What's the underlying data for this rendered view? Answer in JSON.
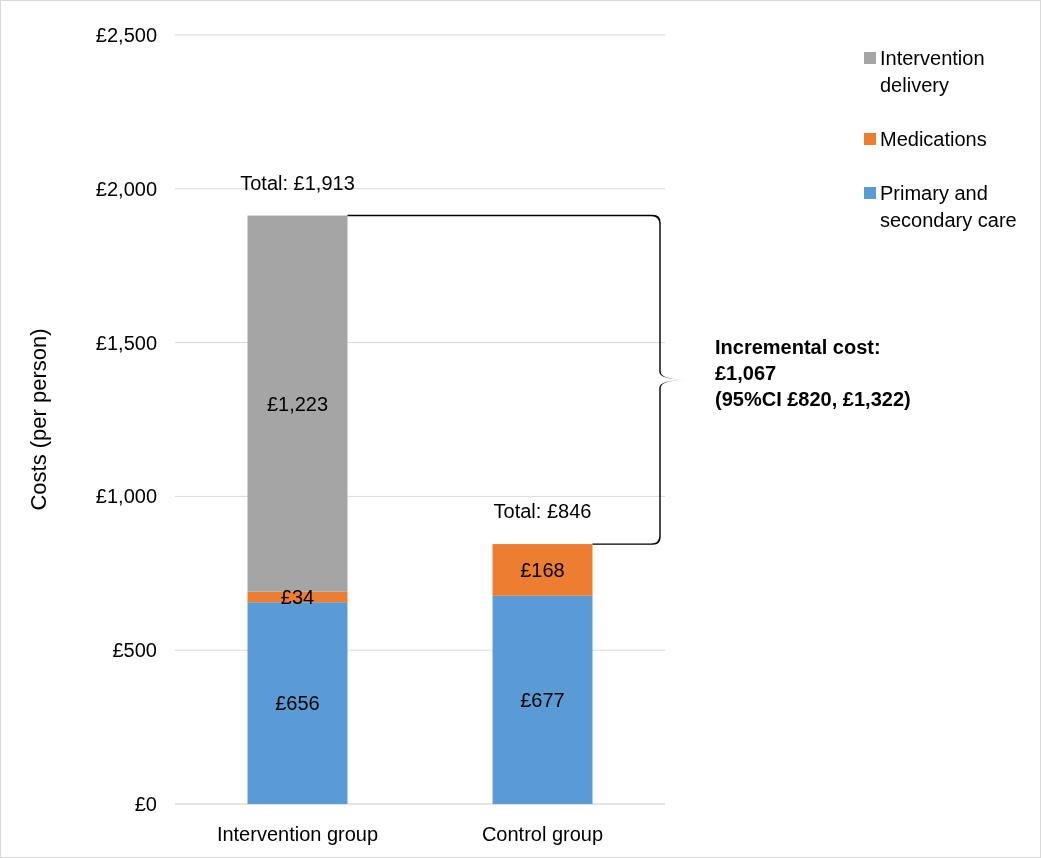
{
  "chart_data": {
    "type": "bar",
    "stacked": true,
    "ylabel": "Costs (per person)",
    "categories": [
      "Intervention group",
      "Control group"
    ],
    "series": [
      {
        "name": "Primary and secondary care",
        "color": "#5b9bd5",
        "values": [
          656,
          677
        ],
        "value_labels": [
          "£656",
          "£677"
        ]
      },
      {
        "name": "Medications",
        "color": "#ed7d31",
        "values": [
          34,
          168
        ],
        "value_labels": [
          "£34",
          "£168"
        ]
      },
      {
        "name": "Intervention delivery",
        "color": "#a5a5a5",
        "values": [
          1223,
          null
        ],
        "value_labels": [
          "£1,223",
          null
        ]
      }
    ],
    "totals": [
      "Total: £1,913",
      "Total: £846"
    ],
    "ylim": [
      0,
      2500
    ],
    "yticks": [
      {
        "value": 0,
        "label": "£0"
      },
      {
        "value": 500,
        "label": "£500"
      },
      {
        "value": 1000,
        "label": "£1,000"
      },
      {
        "value": 1500,
        "label": "£1,500"
      },
      {
        "value": 2000,
        "label": "£2,000"
      },
      {
        "value": 2500,
        "label": "£2,500"
      }
    ],
    "grid": "y",
    "legend": "top right",
    "annotations": [
      "Incremental cost:\n£1,067\n(95%CI £820, £1,322)"
    ]
  }
}
